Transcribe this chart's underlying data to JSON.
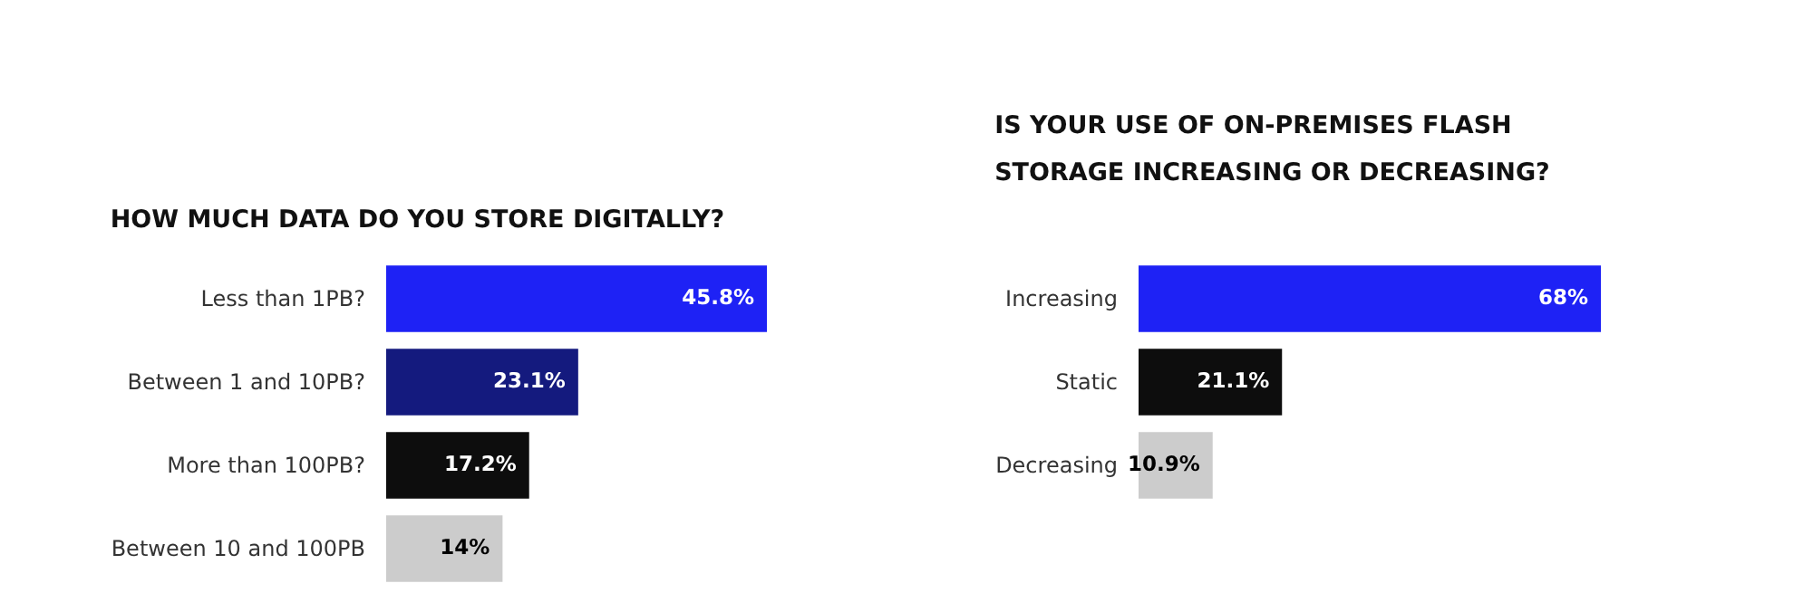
{
  "chart_data": [
    {
      "type": "bar",
      "orientation": "horizontal",
      "title": "HOW MUCH DATA DO YOU STORE DIGITALLY?",
      "categories": [
        "Less than 1PB?",
        "Between 1 and 10PB?",
        "More than 100PB?",
        "Between 10 and 100PB"
      ],
      "values": [
        45.8,
        23.1,
        17.2,
        14
      ],
      "value_labels": [
        "45.8%",
        "23.1%",
        "17.2%",
        "14%"
      ],
      "colors": [
        "#1e22f5",
        "#141a7e",
        "#0d0d0d",
        "#cccccc"
      ]
    },
    {
      "type": "bar",
      "orientation": "horizontal",
      "title": "IS YOUR USE OF ON-PREMISES FLASH STORAGE INCREASING OR DECREASING?",
      "categories": [
        "Increasing",
        "Static",
        "Decreasing"
      ],
      "values": [
        68,
        21.1,
        10.9
      ],
      "value_labels": [
        "68%",
        "21.1%",
        "10.9%"
      ],
      "colors": [
        "#1e22f5",
        "#0d0d0d",
        "#cccccc"
      ]
    }
  ]
}
